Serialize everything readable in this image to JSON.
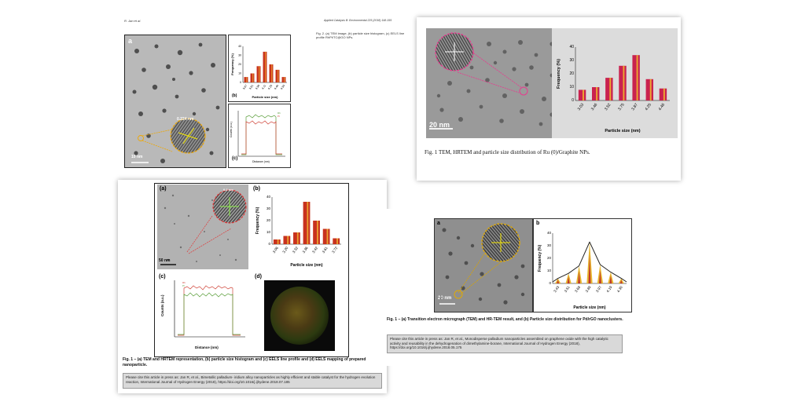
{
  "panel_tl": {
    "header_left": "R. Jan et al.",
    "header_right": "Applied Catalysis B: Environmental 225 (2018) 148-155",
    "caption": "Fig. 2. (a) TEM image, (b) particle size histogram, (c) EELS line profile RhPt/TC@GO NPs.",
    "label_a": "a",
    "label_b": "(b)",
    "label_c": "(c)",
    "scale_bar": "10 nm",
    "lattice_label": "0.224 nm",
    "chart_b": {
      "type": "bar",
      "categories": [
        "3.67",
        "3.81",
        "3.96",
        "4.11",
        "4.25",
        "4.40",
        "4.55"
      ],
      "values": [
        6,
        10,
        18,
        34,
        20,
        14,
        6
      ],
      "ylabel": "Frequency (%)",
      "xlabel": "Particle size (nm)",
      "ylim": [
        0,
        40
      ],
      "yticks": [
        "0",
        "10",
        "20",
        "30",
        "40"
      ],
      "bar_color": "#c8321e",
      "accent_color": "#f2b632"
    },
    "chart_c": {
      "type": "line",
      "xlabel": "Distance (nm)",
      "ylabel": "Counts (a.u.)",
      "legend": [
        "Rh",
        "Pt"
      ],
      "colors": [
        "#5a9e3a",
        "#d0453a"
      ]
    }
  },
  "panel_tr": {
    "label": "20 nm",
    "caption": "Fig. 1 TEM, HRTEM and particle size distribution of Ru (0)/Graphite NPs.",
    "chart_data": {
      "type": "bar",
      "categories": [
        "3.03",
        "3.46",
        "3.52",
        "3.75",
        "3.87",
        "4.25",
        "4.46"
      ],
      "values": [
        8,
        10,
        17,
        26,
        34,
        16,
        9
      ],
      "ylabel": "Frequency (%)",
      "xlabel": "Particle size (nm)",
      "ylim": [
        0,
        40
      ],
      "yticks": [
        "0",
        "10",
        "20",
        "30",
        "40"
      ],
      "bar_color": "#c9224f",
      "accent_color": "#f5c02a"
    }
  },
  "panel_bl": {
    "label_a": "(a)",
    "label_b": "(b)",
    "label_c": "(c)",
    "label_d": "(d)",
    "scale_bar": "50 nm",
    "lattice_label": "0.2 nm",
    "chart_b": {
      "type": "bar",
      "categories": [
        "3.06",
        "3.20",
        "3.32",
        "3.36",
        "3.42",
        "3.61",
        "3.72"
      ],
      "values": [
        4,
        7,
        10,
        36,
        20,
        13,
        5
      ],
      "ylabel": "Frequency (%)",
      "xlabel": "Particle size (nm)",
      "ylim": [
        0,
        40
      ],
      "yticks": [
        "0",
        "10",
        "20",
        "30",
        "40"
      ],
      "bar_color": "#c8321e",
      "accent_color": "#f2b632"
    },
    "chart_c": {
      "type": "line",
      "xlabel": "Distance (nm)",
      "ylabel": "Counts (a.u.)",
      "xticks": [
        "0",
        "1",
        "2",
        "3",
        "4",
        "5",
        "6"
      ],
      "yticks": [
        "0",
        "20",
        "40",
        "60"
      ],
      "legend": [
        "Rh",
        "Pt"
      ],
      "colors": [
        "#d0453a",
        "#5a9e3a"
      ]
    },
    "caption": "Fig. 1 – (a) TEM and HRTEM representation, (b) particle size histogram and (c) EELS line profile and (d) EELS mapping of prepared nanoparticle.",
    "note": "Please cite this article in press as: Jan R, et al., Bimetallic palladium- iridium alloy nanoparticles as highly efficient and stable catalyst for the hydrogen evolution reaction, International Journal of Hydrogen Energy (2018), https://doi.org/10.1016/j.ijhydene.2018.07.185"
  },
  "panel_br": {
    "label_a": "a",
    "label_b": "b",
    "scale_bar": "20 nm",
    "chart_data": {
      "type": "bar",
      "categories": [
        "3.43",
        "3.51",
        "3.68",
        "3.89",
        "3.97",
        "4.19",
        "4.30"
      ],
      "values": [
        4,
        8,
        14,
        33,
        15,
        9,
        4
      ],
      "ylabel": "Frequency (%)",
      "xlabel": "Particle size (nm)",
      "ylim": [
        0,
        40
      ],
      "yticks": [
        "0",
        "10",
        "20",
        "30",
        "40"
      ],
      "bar_color": "#e8b830",
      "accent_color": "#c0392b",
      "curve_color": "#222222"
    },
    "caption": "Fig. 1 – (a) Transition electron micrograph (TEM) and HR-TEM result, and (b) Particle size distribution for Pd/rGO nanoclusters.",
    "note": "Please cite this article in press as: Jan R, et al., Monodisperse palladium nanoparticles assembled on graphene oxide with the high catalytic activity and reusability in the dehydrogenation of dimethylamine-borane, International Journal of Hydrogen Energy (2018), https://doi.org/10.1016/j.ijhydene.2018.05.175"
  }
}
